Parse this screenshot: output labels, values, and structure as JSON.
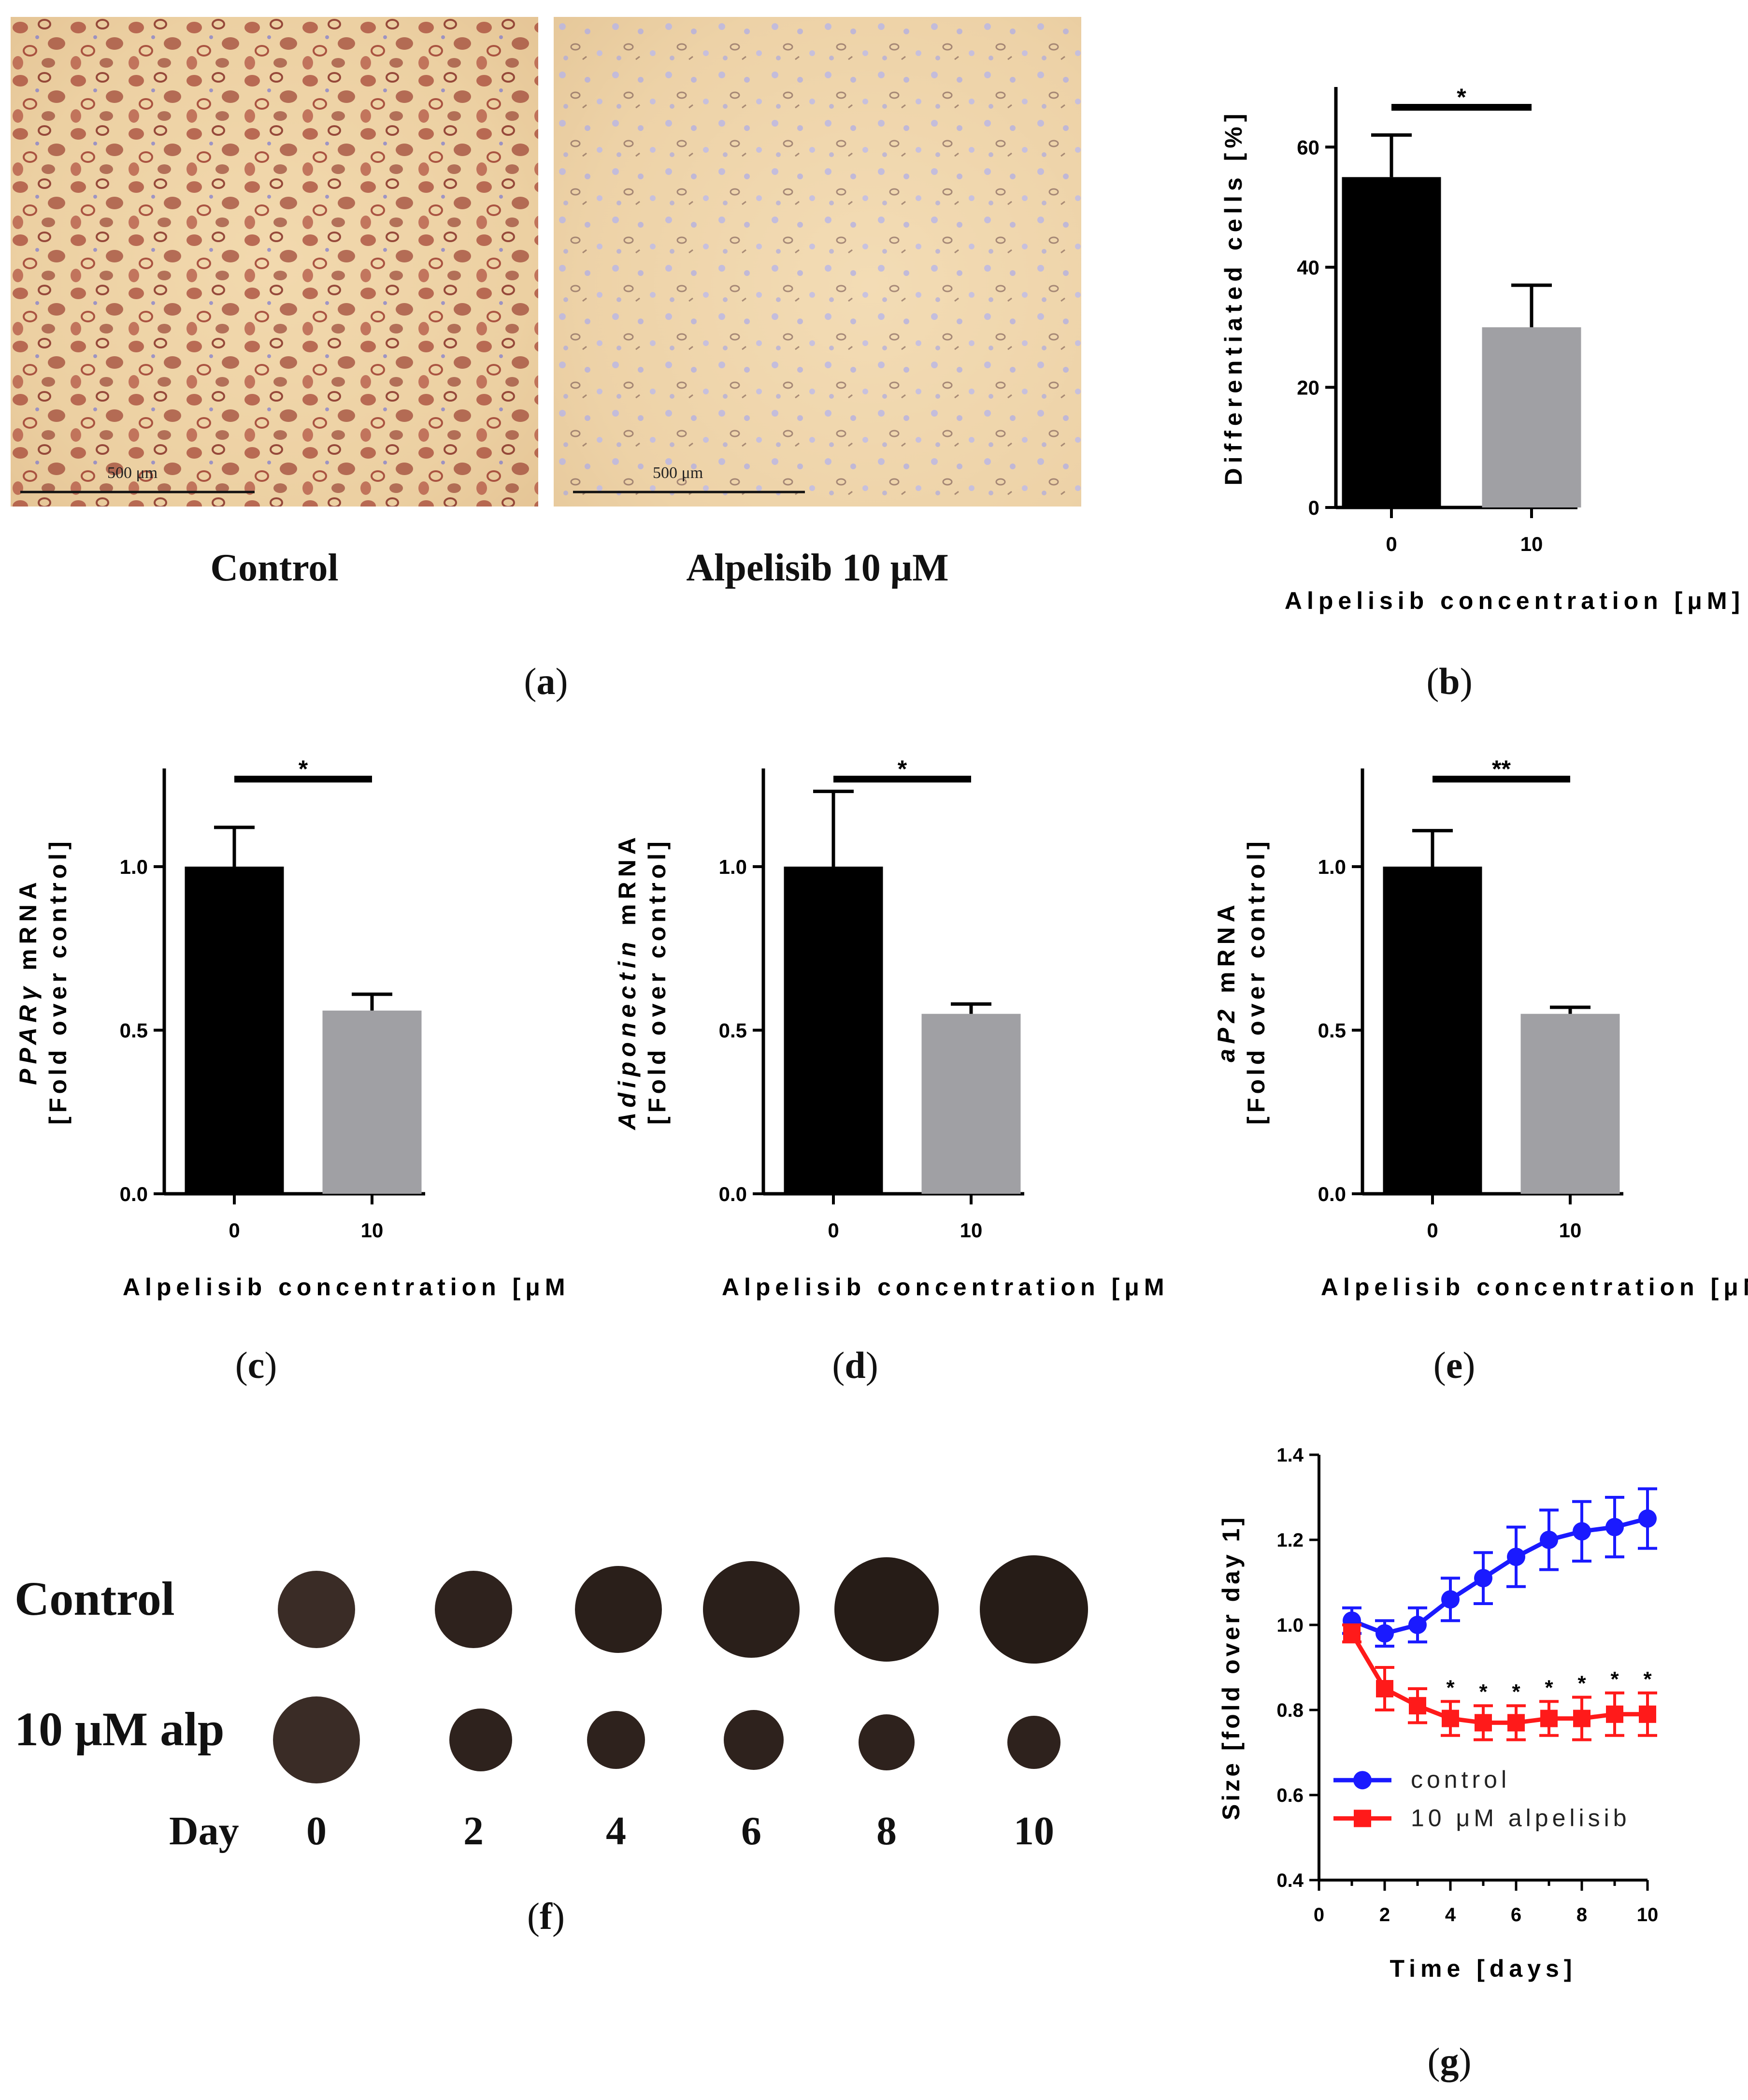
{
  "panel_a": {
    "left_caption": "Control",
    "right_caption": "Alpelisib 10 μM",
    "scale_bar_text": "500 μm",
    "letter": "a"
  },
  "panel_b": {
    "letter": "b"
  },
  "panel_c": {
    "letter": "c"
  },
  "panel_d": {
    "letter": "d"
  },
  "panel_e": {
    "letter": "e"
  },
  "panel_f": {
    "letter": "f",
    "row_labels": [
      "Control",
      "10 μM alp"
    ],
    "day_label": "Day",
    "days": [
      "0",
      "2",
      "4",
      "6",
      "8",
      "10"
    ]
  },
  "panel_g": {
    "letter": "g"
  },
  "chart_data": [
    {
      "id": "b",
      "type": "bar",
      "categories": [
        "0",
        "10"
      ],
      "values": [
        55,
        30
      ],
      "errors": [
        7,
        7
      ],
      "ylabel": "Differentiated cells [%]",
      "xlabel": "Alpelisib concentration [μM]",
      "ylim": [
        0,
        70
      ],
      "yticks": [
        "0",
        "20",
        "40",
        "60"
      ],
      "colors": [
        "#000000",
        "#a0a0a4"
      ],
      "significance": "*"
    },
    {
      "id": "c",
      "type": "bar",
      "categories": [
        "0",
        "10"
      ],
      "values": [
        1.0,
        0.56
      ],
      "errors": [
        0.12,
        0.05
      ],
      "ylabel_italic": "PPARγ",
      "ylabel_rest": " mRNA",
      "ylabel2": "[Fold over control]",
      "xlabel": "Alpelisib concentration [μM]",
      "ylim": [
        0,
        1.3
      ],
      "yticks": [
        "0.0",
        "0.5",
        "1.0"
      ],
      "colors": [
        "#000000",
        "#a0a0a4"
      ],
      "significance": "*"
    },
    {
      "id": "d",
      "type": "bar",
      "categories": [
        "0",
        "10"
      ],
      "values": [
        1.0,
        0.55
      ],
      "errors": [
        0.23,
        0.03
      ],
      "ylabel_italic": "Adiponectin",
      "ylabel_rest": " mRNA",
      "ylabel2": "[Fold over control]",
      "xlabel": "Alpelisib concentration [μM]",
      "ylim": [
        0,
        1.3
      ],
      "yticks": [
        "0.0",
        "0.5",
        "1.0"
      ],
      "colors": [
        "#000000",
        "#a0a0a4"
      ],
      "significance": "*"
    },
    {
      "id": "e",
      "type": "bar",
      "categories": [
        "0",
        "10"
      ],
      "values": [
        1.0,
        0.55
      ],
      "errors": [
        0.11,
        0.02
      ],
      "ylabel_italic": "aP2",
      "ylabel_rest": " mRNA",
      "ylabel2": "[Fold over control]",
      "xlabel": "Alpelisib concentration [μM]",
      "ylim": [
        0,
        1.3
      ],
      "yticks": [
        "0.0",
        "0.5",
        "1.0"
      ],
      "colors": [
        "#000000",
        "#a0a0a4"
      ],
      "significance": "**"
    },
    {
      "id": "g",
      "type": "line",
      "x": [
        1,
        2,
        3,
        4,
        5,
        6,
        7,
        8,
        9,
        10
      ],
      "series": [
        {
          "name": "control",
          "color": "#1a1aff",
          "marker": "circle",
          "values": [
            1.01,
            0.98,
            1.0,
            1.06,
            1.11,
            1.16,
            1.2,
            1.22,
            1.23,
            1.25
          ],
          "errors": [
            0.03,
            0.03,
            0.04,
            0.05,
            0.06,
            0.07,
            0.07,
            0.07,
            0.07,
            0.07
          ]
        },
        {
          "name": "10 μM alpelisib",
          "color": "#ff1a1a",
          "marker": "square",
          "values": [
            0.98,
            0.85,
            0.81,
            0.78,
            0.77,
            0.77,
            0.78,
            0.78,
            0.79,
            0.79
          ],
          "errors": [
            0.02,
            0.05,
            0.04,
            0.04,
            0.04,
            0.04,
            0.04,
            0.05,
            0.05,
            0.05
          ]
        }
      ],
      "ylabel": "Size [fold over day 1]",
      "xlabel": "Time [days]",
      "xlim": [
        0,
        10
      ],
      "ylim": [
        0.4,
        1.4
      ],
      "xticks": [
        "0",
        "2",
        "4",
        "6",
        "8",
        "10"
      ],
      "yticks": [
        "0.4",
        "0.6",
        "0.8",
        "1.0",
        "1.2",
        "1.4"
      ],
      "significance_marks": [
        "*",
        "*",
        "*",
        "*",
        "*",
        "*",
        "*"
      ],
      "significance_x": [
        4,
        5,
        6,
        7,
        8,
        9,
        10
      ],
      "legend": "bottom-left"
    }
  ]
}
